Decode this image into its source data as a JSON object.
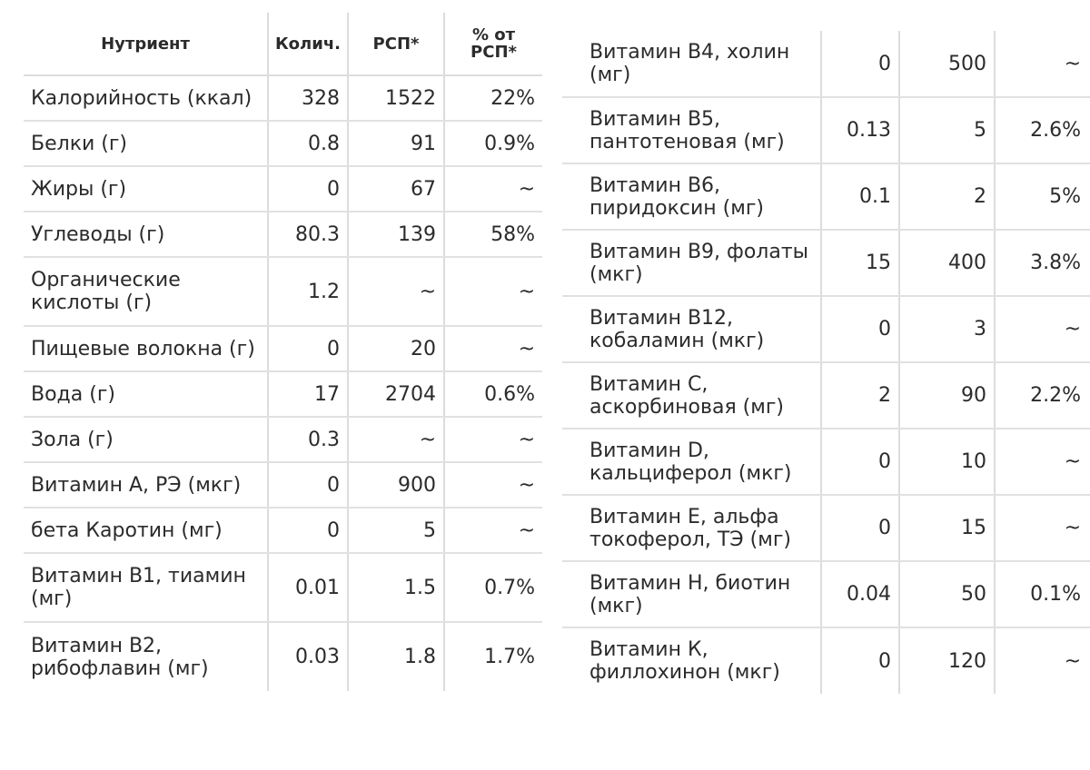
{
  "headers": {
    "nutrient": "Нутриент",
    "qty": "Колич.",
    "rsp": "РСП*",
    "pct": "% от РСП*"
  },
  "left_rows": [
    {
      "name": "Калорийность (ккал)",
      "qty": "328",
      "rsp": "1522",
      "pct": "22%"
    },
    {
      "name": "Белки (г)",
      "qty": "0.8",
      "rsp": "91",
      "pct": "0.9%"
    },
    {
      "name": "Жиры (г)",
      "qty": "0",
      "rsp": "67",
      "pct": "~"
    },
    {
      "name": "Углеводы (г)",
      "qty": "80.3",
      "rsp": "139",
      "pct": "58%"
    },
    {
      "name": "Органические кислоты (г)",
      "qty": "1.2",
      "rsp": "~",
      "pct": "~"
    },
    {
      "name": "Пищевые волокна (г)",
      "qty": "0",
      "rsp": "20",
      "pct": "~"
    },
    {
      "name": "Вода (г)",
      "qty": "17",
      "rsp": "2704",
      "pct": "0.6%"
    },
    {
      "name": "Зола (г)",
      "qty": "0.3",
      "rsp": "~",
      "pct": "~"
    },
    {
      "name": "Витамин А, РЭ (мкг)",
      "qty": "0",
      "rsp": "900",
      "pct": "~"
    },
    {
      "name": "бета Каротин (мг)",
      "qty": "0",
      "rsp": "5",
      "pct": "~"
    },
    {
      "name": "Витамин В1, тиамин (мг)",
      "qty": "0.01",
      "rsp": "1.5",
      "pct": "0.7%"
    },
    {
      "name": "Витамин В2, рибофлавин (мг)",
      "qty": "0.03",
      "rsp": "1.8",
      "pct": "1.7%"
    }
  ],
  "right_rows": [
    {
      "name": "Витамин В4, холин (мг)",
      "qty": "0",
      "rsp": "500",
      "pct": "~"
    },
    {
      "name": "Витамин В5, пантотеновая (мг)",
      "qty": "0.13",
      "rsp": "5",
      "pct": "2.6%"
    },
    {
      "name": "Витамин В6, пиридоксин (мг)",
      "qty": "0.1",
      "rsp": "2",
      "pct": "5%"
    },
    {
      "name": "Витамин В9, фолаты (мкг)",
      "qty": "15",
      "rsp": "400",
      "pct": "3.8%"
    },
    {
      "name": "Витамин В12, кобаламин (мкг)",
      "qty": "0",
      "rsp": "3",
      "pct": "~"
    },
    {
      "name": "Витамин C, аскорбиновая (мг)",
      "qty": "2",
      "rsp": "90",
      "pct": "2.2%"
    },
    {
      "name": "Витамин D, кальциферол (мкг)",
      "qty": "0",
      "rsp": "10",
      "pct": "~"
    },
    {
      "name": "Витамин Е, альфа токоферол, ТЭ (мг)",
      "qty": "0",
      "rsp": "15",
      "pct": "~"
    },
    {
      "name": "Витамин Н, биотин (мкг)",
      "qty": "0.04",
      "rsp": "50",
      "pct": "0.1%"
    },
    {
      "name": "Витамин К, филлохинон (мкг)",
      "qty": "0",
      "rsp": "120",
      "pct": "~"
    }
  ]
}
